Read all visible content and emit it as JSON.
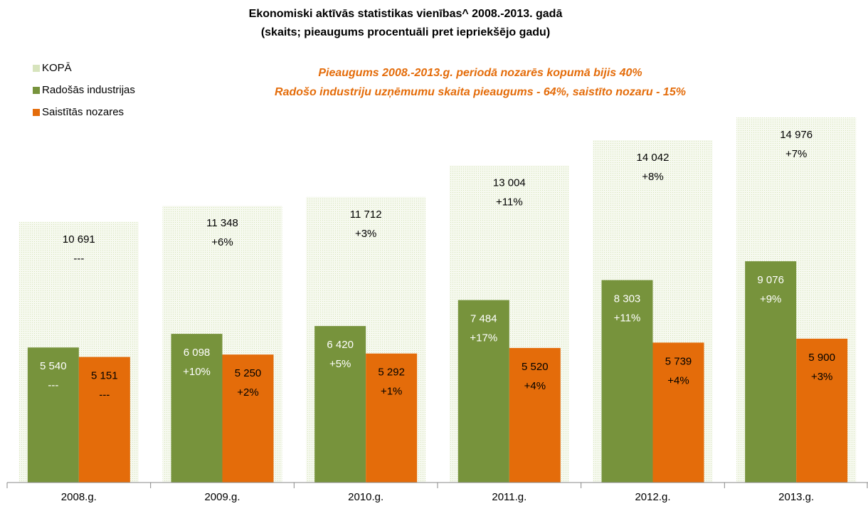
{
  "chart_data": {
    "type": "bar",
    "title": "Ekonomiski aktīvās statistikas vienības^ 2008.-2013. gadā",
    "subtitle": "(skaits; pieaugums procentuāli pret iepriekšējo gadu)",
    "annotations": [
      "Pieaugums 2008.-2013.g. periodā nozarēs kopumā bijis 40%",
      "Radošo industriju uzņēmumu skaita pieaugums - 64%, saistīto nozaru - 15%"
    ],
    "categories": [
      "2008.g.",
      "2009.g.",
      "2010.g.",
      "2011.g.",
      "2012.g.",
      "2013.g."
    ],
    "series": [
      {
        "name": "KOPĀ",
        "color": "#ebf1de",
        "values": [
          10691,
          11348,
          11712,
          13004,
          14042,
          14976
        ],
        "value_labels": [
          "10 691",
          "11 348",
          "11 712",
          "13 004",
          "14 042",
          "14 976"
        ],
        "change_labels": [
          "---",
          "+6%",
          "+3%",
          "+11%",
          "+8%",
          "+7%"
        ]
      },
      {
        "name": "Radošās industrijas",
        "color": "#77933c",
        "values": [
          5540,
          6098,
          6420,
          7484,
          8303,
          9076
        ],
        "value_labels": [
          "5 540",
          "6 098",
          "6 420",
          "7 484",
          "8 303",
          "9 076"
        ],
        "change_labels": [
          "---",
          "+10%",
          "+5%",
          "+17%",
          "+11%",
          "+9%"
        ]
      },
      {
        "name": "Saistītās nozares",
        "color": "#e46c0a",
        "values": [
          5151,
          5250,
          5292,
          5520,
          5739,
          5900
        ],
        "value_labels": [
          "5 151",
          "5 250",
          "5 292",
          "5 520",
          "5 739",
          "5 900"
        ],
        "change_labels": [
          "---",
          "+2%",
          "+1%",
          "+4%",
          "+4%",
          "+3%"
        ]
      }
    ]
  }
}
